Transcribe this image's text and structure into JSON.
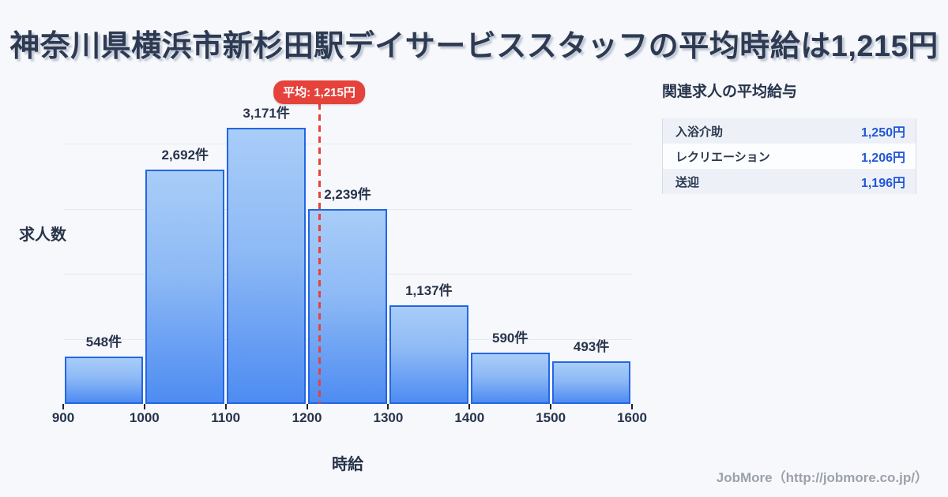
{
  "title": "神奈川県横浜市新杉田駅デイサービススタッフの平均時給は1,215円",
  "chart_data": {
    "type": "bar",
    "title": "神奈川県横浜市新杉田駅デイサービススタッフの平均時給は1,215円",
    "categories": [
      "900-1000",
      "1000-1100",
      "1100-1200",
      "1200-1300",
      "1300-1400",
      "1400-1500",
      "1500-1600"
    ],
    "values": [
      548,
      2692,
      3171,
      2239,
      1137,
      590,
      493
    ],
    "bar_labels": [
      "548件",
      "2,692件",
      "3,171件",
      "2,239件",
      "1,137件",
      "590件",
      "493件"
    ],
    "x_tick_labels": [
      "900",
      "1000",
      "1100",
      "1200",
      "1300",
      "1400",
      "1500",
      "1600"
    ],
    "xlabel": "時給",
    "ylabel": "求人数",
    "average_value": 1215,
    "average_label": "平均: 1,215円",
    "ylim": [
      0,
      3731
    ],
    "grid": true,
    "legend": "none"
  },
  "related": {
    "title": "関連求人の平均給与",
    "rows": [
      {
        "label": "入浴介助",
        "value": "1,250円"
      },
      {
        "label": "レクリエーション",
        "value": "1,206円"
      },
      {
        "label": "送迎",
        "value": "1,196円"
      }
    ]
  },
  "footer": {
    "credit": "JobMore（http://jobmore.co.jp/）"
  },
  "colors": {
    "background": "#f7f8fb",
    "title_text": "#2d3a52",
    "bar_fill_top": "#a9cdf8",
    "bar_fill_bottom": "#4e8cf2",
    "bar_border": "#2466e3",
    "average_red": "#e6423c",
    "value_blue": "#2257d8",
    "grid_line": "#e4e9f1",
    "credit_gray": "#9ba1ab"
  }
}
